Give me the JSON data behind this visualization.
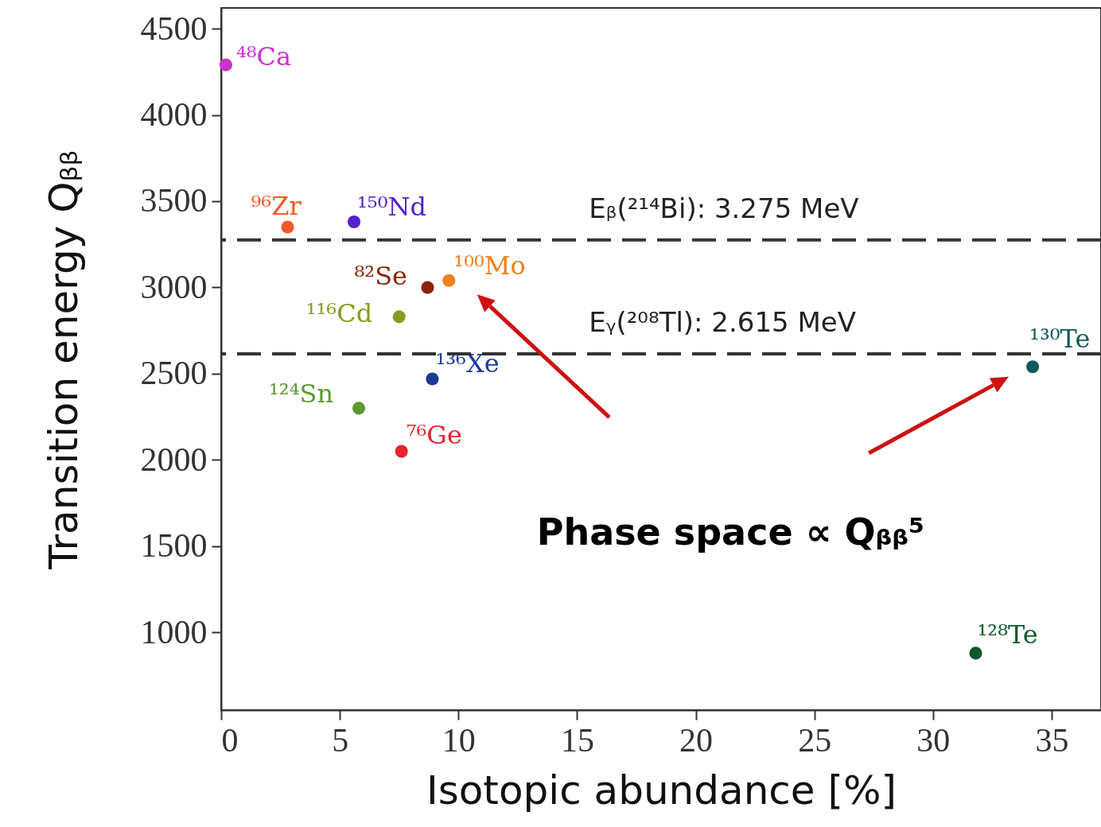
{
  "chart_data": {
    "type": "scatter",
    "xlabel": "Isotopic abundance [%]",
    "ylabel": "Transition energy Qᵦᵦ",
    "xlim": [
      0,
      37.08
    ],
    "ylim": [
      550,
      4620
    ],
    "xticks": [
      0,
      5,
      10,
      15,
      20,
      25,
      30,
      35
    ],
    "yticks": [
      1000,
      1500,
      2000,
      2500,
      3000,
      3500,
      4000,
      4500
    ],
    "marker": "circle",
    "grid": false,
    "series": [
      {
        "name": "⁴⁸Ca",
        "color": "#cc33cc",
        "x": [
          0.2
        ],
        "values": [
          4290
        ]
      },
      {
        "name": "⁹⁶Zr",
        "color": "#f05a28",
        "x": [
          2.8
        ],
        "values": [
          3350
        ]
      },
      {
        "name": "¹⁵⁰Nd",
        "color": "#5522cc",
        "x": [
          5.6
        ],
        "values": [
          3380
        ]
      },
      {
        "name": "⁸²Se",
        "color": "#8b2500",
        "x": [
          8.7
        ],
        "values": [
          3000
        ]
      },
      {
        "name": "¹⁰⁰Mo",
        "color": "#f08020",
        "x": [
          9.6
        ],
        "values": [
          3040
        ]
      },
      {
        "name": "¹¹⁶Cd",
        "color": "#8a9a20",
        "x": [
          7.5
        ],
        "values": [
          2830
        ]
      },
      {
        "name": "¹³⁶Xe",
        "color": "#1a3a9a",
        "x": [
          8.9
        ],
        "values": [
          2470
        ]
      },
      {
        "name": "¹²⁴Sn",
        "color": "#5a9a30",
        "x": [
          5.8
        ],
        "values": [
          2300
        ]
      },
      {
        "name": "⁷⁶Ge",
        "color": "#e8252a",
        "x": [
          7.6
        ],
        "values": [
          2050
        ]
      },
      {
        "name": "¹³⁰Te",
        "color": "#0e5a5a",
        "x": [
          34.2
        ],
        "values": [
          2540
        ]
      },
      {
        "name": "¹²⁸Te",
        "color": "#0a5a2a",
        "x": [
          31.8
        ],
        "values": [
          880
        ]
      }
    ],
    "ref_lines": [
      {
        "axis": "y",
        "value": 3275,
        "label": "Eᵦ(²¹⁴Bi): 3.275 MeV",
        "line_style": "dashed"
      },
      {
        "axis": "y",
        "value": 2615,
        "label": "Eᵧ(²⁰⁸Tl): 2.615 MeV",
        "line_style": "dashed"
      }
    ],
    "annotations": [
      "Phase space ∝ Qᵦᵦ⁵"
    ]
  }
}
